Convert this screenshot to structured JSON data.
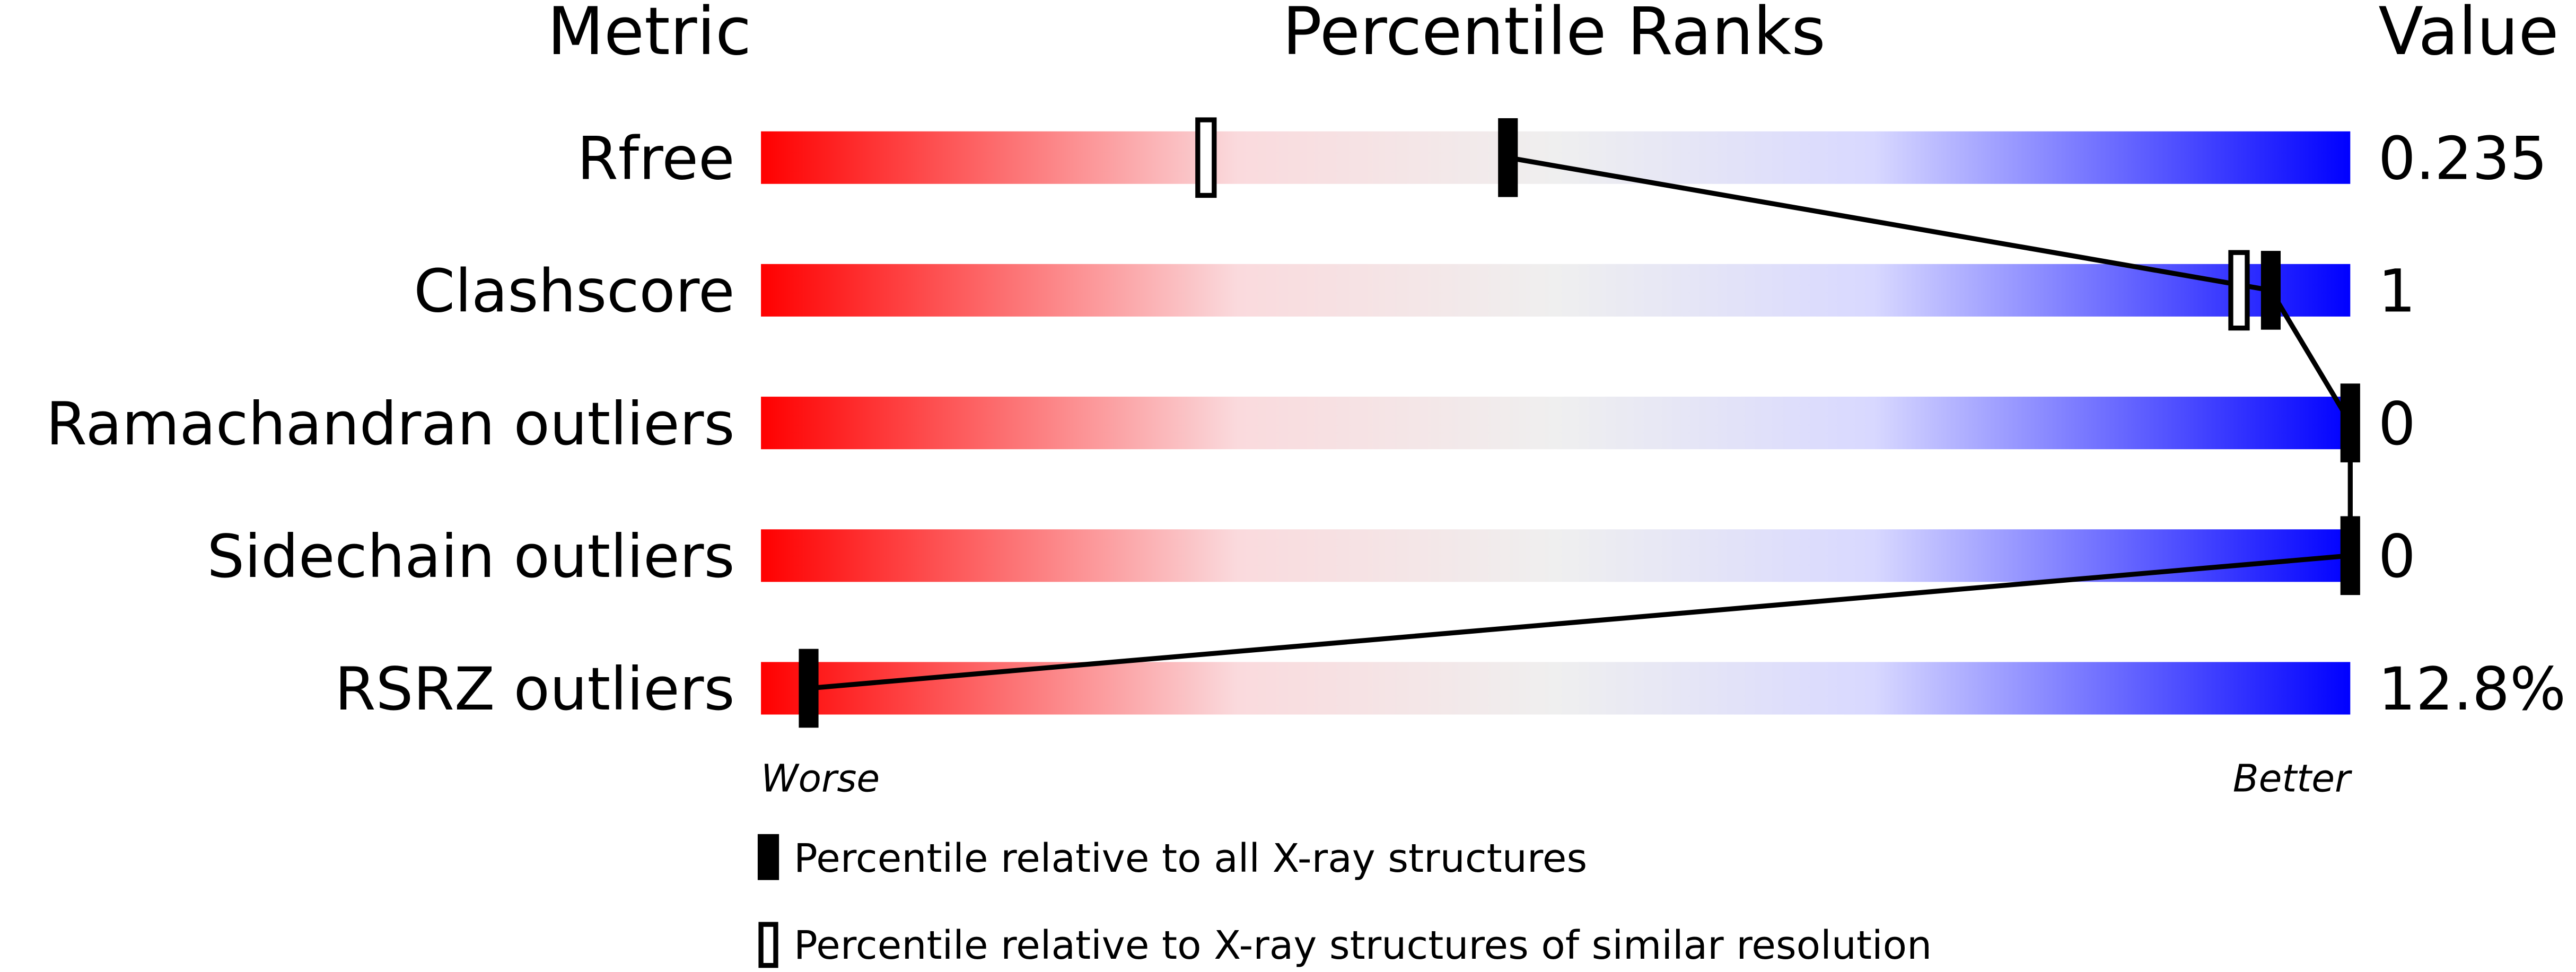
{
  "chart_data": {
    "type": "percentile-slider",
    "headers": [
      "Metric",
      "Percentile Ranks",
      "Value"
    ],
    "categories": [
      "Rfree",
      "Clashscore",
      "Ramachandran outliers",
      "Sidechain outliers",
      "RSRZ outliers"
    ],
    "metric_values": [
      "0.235",
      "1",
      "0",
      "0",
      "12.8%"
    ],
    "xlim": [
      0,
      100
    ],
    "axis_labels": [
      "Worse",
      "Better"
    ],
    "series": [
      {
        "name": "Percentile relative to all X-ray structures",
        "color": "#000000",
        "style": "filled",
        "values": [
          47,
          95,
          100,
          100,
          3
        ]
      },
      {
        "name": "Percentile relative to X-ray structures of similar resolution",
        "color": "#000000",
        "style": "open",
        "values": [
          28,
          93,
          null,
          null,
          null
        ]
      }
    ],
    "connect_series": 0
  }
}
